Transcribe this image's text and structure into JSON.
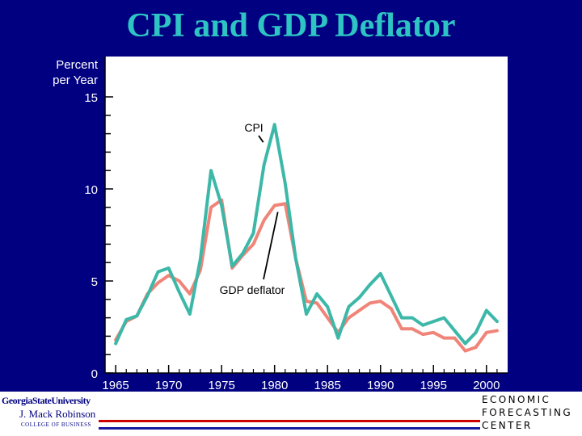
{
  "title": "CPI and GDP Deflator",
  "footer": {
    "left_logo": [
      "GeorgiaStateUniversity",
      "J. Mack Robinson",
      "COLLEGE OF BUSINESS"
    ],
    "right_logo": [
      "ECONOMIC",
      "FORECASTING",
      "CENTER"
    ]
  },
  "colors": {
    "background": "#000080",
    "title": "#2ec4c4",
    "plot_area": "#ffffff",
    "cpi_line": "#3db8a8",
    "deflator_line": "#f08478"
  },
  "chart_data": {
    "type": "line",
    "ylabel": "Percent per Year",
    "ylabel_lines": [
      "Percent",
      "per Year"
    ],
    "ylim": [
      0,
      15
    ],
    "xlim": [
      1964,
      2002
    ],
    "x_ticks": [
      1965,
      1970,
      1975,
      1980,
      1985,
      1990,
      1995,
      2000
    ],
    "y_ticks": [
      0,
      5,
      10,
      15
    ],
    "x_tick_labels": [
      "1965",
      "1970",
      "1975",
      "1980",
      "1985",
      "1990",
      "1995",
      "2000"
    ],
    "y_tick_labels": [
      "0",
      "5",
      "10",
      "15"
    ],
    "grid": false,
    "x": [
      1965,
      1966,
      1967,
      1968,
      1969,
      1970,
      1971,
      1972,
      1973,
      1974,
      1975,
      1976,
      1977,
      1978,
      1979,
      1980,
      1981,
      1982,
      1983,
      1984,
      1985,
      1986,
      1987,
      1988,
      1989,
      1990,
      1991,
      1992,
      1993,
      1994,
      1995,
      1996,
      1997,
      1998,
      1999,
      2000,
      2001
    ],
    "series": [
      {
        "name": "CPI",
        "values": [
          1.6,
          2.9,
          3.1,
          4.2,
          5.5,
          5.7,
          4.4,
          3.2,
          6.2,
          11.0,
          9.1,
          5.8,
          6.5,
          7.6,
          11.3,
          13.5,
          10.3,
          6.2,
          3.2,
          4.3,
          3.6,
          1.9,
          3.6,
          4.1,
          4.8,
          5.4,
          4.2,
          3.0,
          3.0,
          2.6,
          2.8,
          3.0,
          2.3,
          1.6,
          2.2,
          3.4,
          2.8
        ]
      },
      {
        "name": "GDP deflator",
        "values": [
          1.8,
          2.8,
          3.1,
          4.3,
          4.9,
          5.3,
          5.0,
          4.3,
          5.6,
          9.0,
          9.4,
          5.7,
          6.4,
          7.0,
          8.3,
          9.1,
          9.2,
          6.2,
          3.9,
          3.8,
          3.0,
          2.2,
          3.0,
          3.4,
          3.8,
          3.9,
          3.5,
          2.4,
          2.4,
          2.1,
          2.2,
          1.9,
          1.9,
          1.2,
          1.4,
          2.2,
          2.3
        ]
      }
    ],
    "annotations": [
      {
        "text": "CPI",
        "series": "CPI",
        "at_x": 1980
      },
      {
        "text": "GDP deflator",
        "series": "GDP deflator",
        "at_x": 1980
      }
    ]
  }
}
